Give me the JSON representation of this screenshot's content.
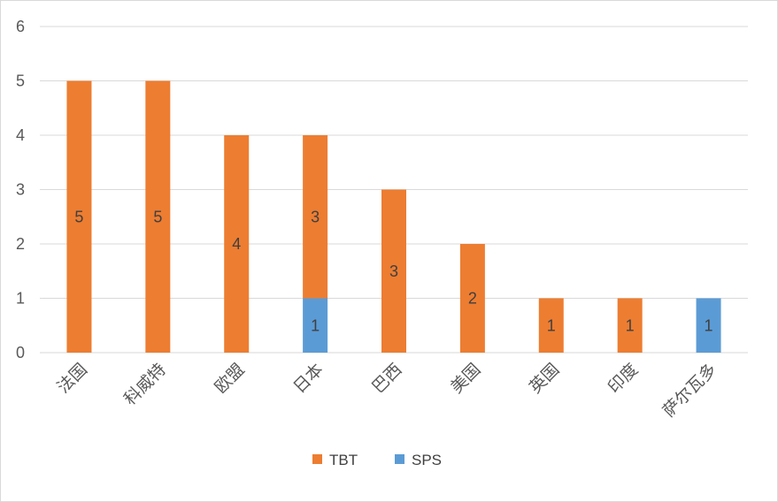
{
  "chart_data": {
    "type": "bar",
    "stacked": true,
    "title": "",
    "xlabel": "",
    "ylabel": "",
    "ylim": [
      0,
      6
    ],
    "yticks": [
      0,
      1,
      2,
      3,
      4,
      5,
      6
    ],
    "grid": true,
    "legend_position": "bottom",
    "categories": [
      "法国",
      "科威特",
      "欧盟",
      "日本",
      "巴西",
      "美国",
      "英国",
      "印度",
      "萨尔瓦多"
    ],
    "series": [
      {
        "name": "SPS",
        "color": "#5b9bd5",
        "values": [
          0,
          0,
          0,
          1,
          0,
          0,
          0,
          0,
          1
        ]
      },
      {
        "name": "TBT",
        "color": "#ed7d31",
        "values": [
          5,
          5,
          4,
          3,
          3,
          2,
          1,
          1,
          0
        ]
      }
    ],
    "legend": [
      {
        "name": "TBT",
        "color": "#ed7d31"
      },
      {
        "name": "SPS",
        "color": "#5b9bd5"
      }
    ]
  }
}
